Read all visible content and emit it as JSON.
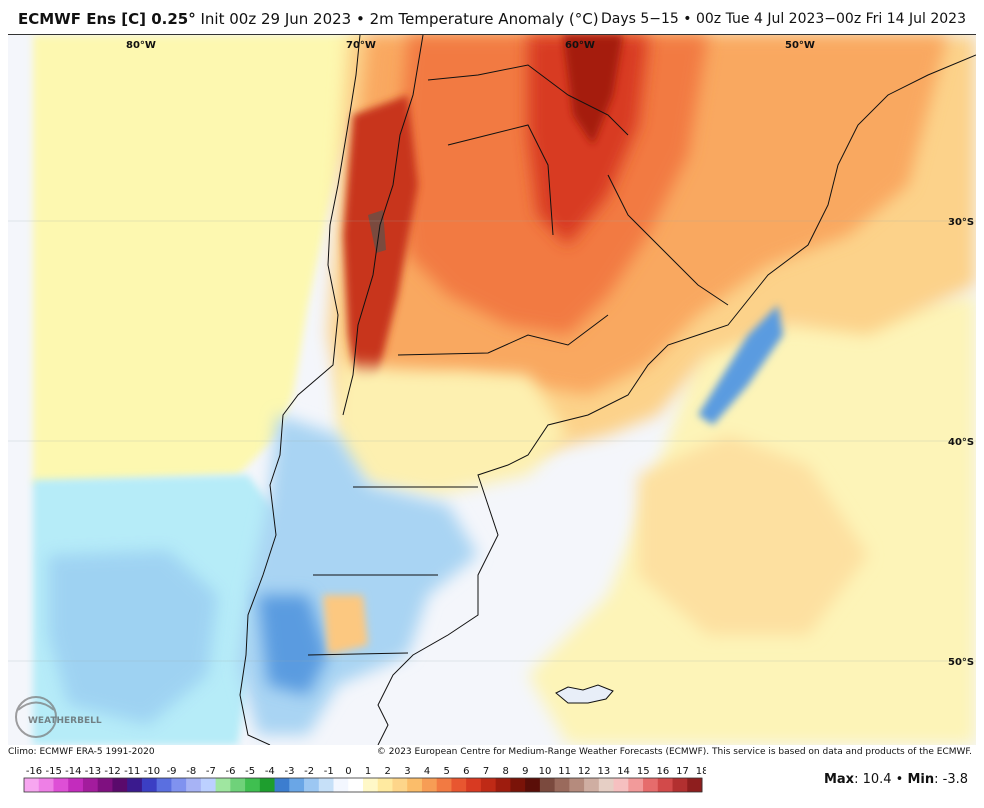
{
  "header": {
    "title_bold": "ECMWF Ens [C] 0.25",
    "title_degree": "°",
    "title_rest": " Init 00z 29 Jun 2023 • 2m Temperature Anomaly (°C)",
    "valid": "Days 5−15 • 00z Tue 4 Jul 2023−00z Fri 14 Jul 2023"
  },
  "map": {
    "longitude_labels": [
      "80°W",
      "70°W",
      "60°W",
      "50°W"
    ],
    "latitude_labels": [
      "30°S",
      "40°S",
      "50°S"
    ],
    "logo_text": "WEATHERBELL"
  },
  "footer": {
    "climo": "Climo: ECMWF ERA-5 1991-2020",
    "copyright": "© 2023 European Centre for Medium-Range Weather Forecasts (ECMWF). This service is based on data and products of the ECMWF.",
    "max_label": "Max",
    "max_value": ": 10.4 • ",
    "min_label": "Min",
    "min_value": ": -3.8"
  },
  "colorbar": {
    "labels": [
      "-16",
      "-15",
      "-14",
      "-13",
      "-12",
      "-11",
      "-10",
      "-9",
      "-8",
      "-7",
      "-6",
      "-5",
      "-4",
      "-3",
      "-2",
      "-1",
      "0",
      "1",
      "2",
      "3",
      "4",
      "5",
      "6",
      "7",
      "8",
      "9",
      "10",
      "11",
      "12",
      "13",
      "14",
      "15",
      "16",
      "17",
      "18"
    ],
    "colors": [
      "#f7a6f0",
      "#ee7fe6",
      "#de4fd6",
      "#c32cbd",
      "#a31c9d",
      "#7f1080",
      "#5a0a6c",
      "#3a1a8e",
      "#3b3fc4",
      "#5a6fe0",
      "#8092ef",
      "#a7b3f5",
      "#bcd0ff",
      "#9fe6a0",
      "#6fd27a",
      "#3fbf50",
      "#1e9e2e",
      "#3c7dcf",
      "#6aa6e6",
      "#9cc7f2",
      "#c6e0f8",
      "#f3f7ff",
      "#ffffff",
      "#fff8c8",
      "#ffeaa0",
      "#fdd58a",
      "#fbbd6a",
      "#f79d55",
      "#f27a42",
      "#e85630",
      "#d83a22",
      "#bf2a16",
      "#9e1c0e",
      "#7a1308",
      "#5a0e08",
      "#7b4a3e",
      "#9a6a5c",
      "#b58b7d",
      "#cfaea2",
      "#e6cfc5",
      "#f6c0c0",
      "#f29a9a",
      "#e66c6c",
      "#d24a4a",
      "#b23030",
      "#8e1e1e"
    ],
    "special_colors": {
      "negative_blue_ramp": "#3c7dcf",
      "zero": "#ffffff",
      "positive_red_ramp": "#e85630"
    }
  }
}
